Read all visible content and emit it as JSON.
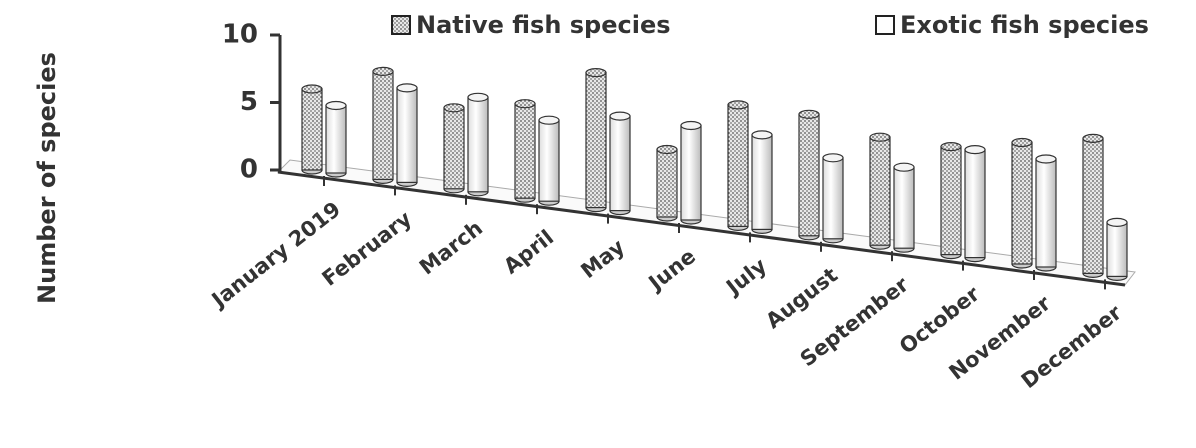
{
  "chart_data": {
    "type": "bar3d",
    "y_label": "Number of species",
    "categories": [
      "January 2019",
      "February",
      "March",
      "April",
      "May",
      "June",
      "July",
      "August",
      "September",
      "October",
      "November",
      "December"
    ],
    "series": [
      {
        "name": "Native fish species",
        "color": "dotted",
        "values": [
          6,
          8,
          6,
          7,
          10,
          5,
          9,
          9,
          8,
          8,
          9,
          10
        ]
      },
      {
        "name": "Exotic fish species",
        "color": "#ffffff",
        "values": [
          5,
          7,
          7,
          6,
          7,
          7,
          7,
          6,
          6,
          8,
          8,
          4
        ]
      }
    ],
    "ylim": [
      0,
      10
    ],
    "yticks": [
      0,
      5,
      10
    ],
    "legend": "top"
  }
}
